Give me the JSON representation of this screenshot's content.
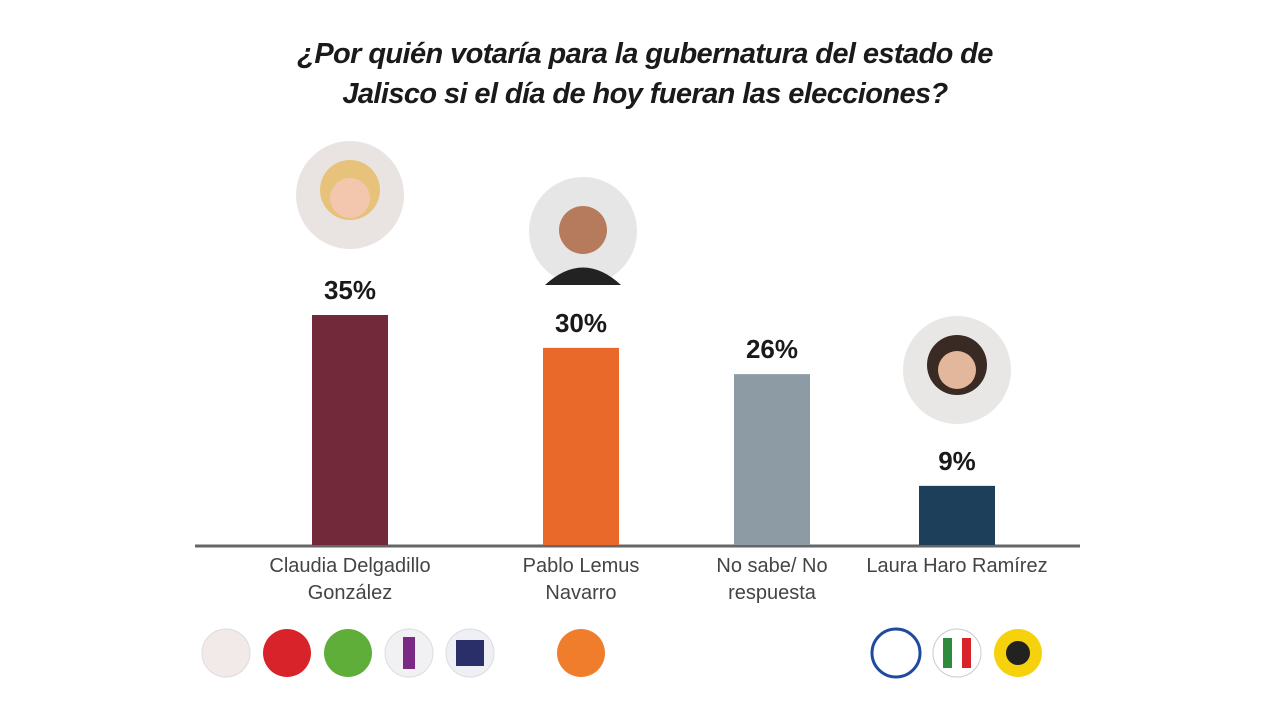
{
  "chart_data": {
    "type": "bar",
    "title": "¿Por quién votaría para la gubernatura del estado de Jalisco si el día de hoy fueran las elecciones?",
    "categories": [
      "Claudia Delgadillo González",
      "Pablo Lemus Navarro",
      "No sabe/ No respuesta",
      "Laura Haro Ramírez"
    ],
    "values": [
      35,
      30,
      26,
      9
    ],
    "value_labels": [
      "35%",
      "30%",
      "26%",
      "9%"
    ],
    "colors": [
      "#722a3a",
      "#e8692a",
      "#8c9ba4",
      "#1e3f5a"
    ]
  }
}
